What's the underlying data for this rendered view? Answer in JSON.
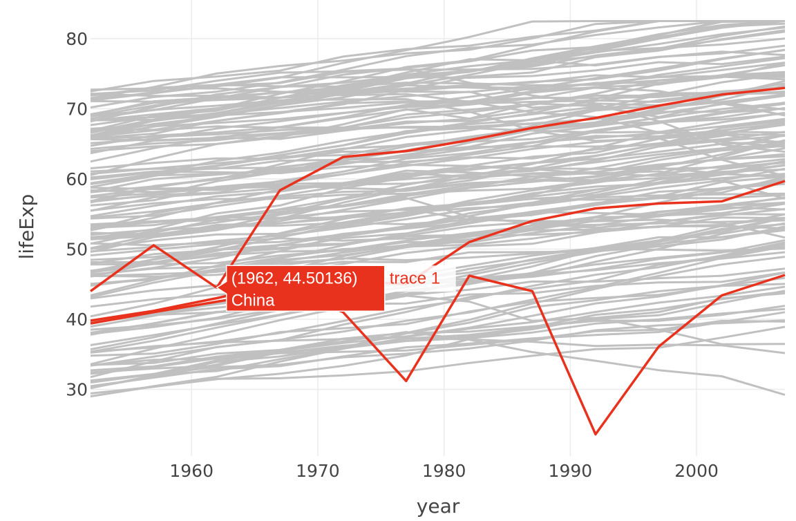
{
  "chart_data": {
    "type": "line",
    "title": "",
    "xlabel": "year",
    "ylabel": "lifeExp",
    "xlim": [
      1952,
      2007
    ],
    "ylim": [
      20.5,
      85.5
    ],
    "x_ticks": [
      1960,
      1970,
      1980,
      1990,
      2000
    ],
    "y_ticks": [
      30,
      40,
      50,
      60,
      70,
      80
    ],
    "grid": true,
    "legend": "none",
    "x": [
      1952,
      1957,
      1962,
      1967,
      1972,
      1977,
      1982,
      1987,
      1992,
      1997,
      2002,
      2007
    ],
    "highlighted_series": [
      {
        "values": [
          44.0,
          50.55,
          44.50136,
          58.38,
          63.12,
          63.97,
          65.53,
          67.27,
          68.69,
          70.43,
          72.03,
          72.96
        ]
      },
      {
        "values": [
          39.4,
          41.0,
          42.5,
          44.0,
          45.5,
          45.0,
          51.0,
          54.0,
          55.8,
          56.5,
          56.8,
          59.7
        ]
      },
      {
        "values": [
          39.8,
          41.2,
          43.0,
          45.0,
          41.0,
          31.2,
          46.2,
          44.0,
          23.6,
          36.1,
          43.4,
          46.3
        ]
      }
    ],
    "tooltip": {
      "x": 1962,
      "y": 44.50136,
      "label": "(1962, 44.50136)",
      "trace": "trace 1",
      "name": "China"
    },
    "colors": {
      "background_lines": "#c0c0c0",
      "highlight": "#e8321e",
      "grid": "#ebebeb",
      "axis_text": "#444444"
    }
  }
}
